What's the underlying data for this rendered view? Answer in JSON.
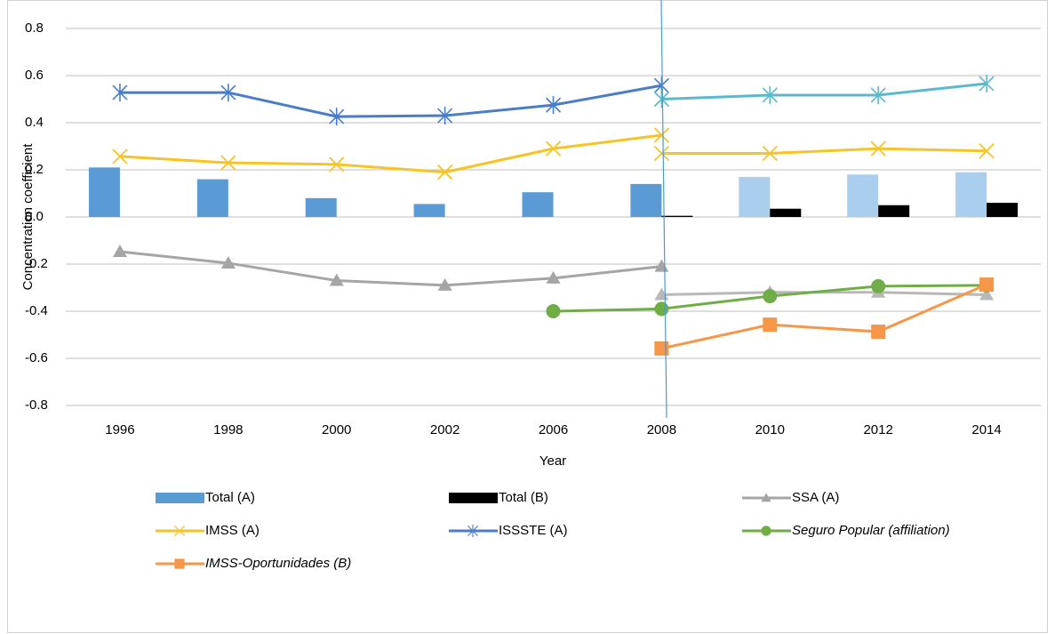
{
  "chart_data": {
    "type": "combo",
    "y_label": "Concentration coefficient",
    "x_label": "Year",
    "categories": [
      "1996",
      "1998",
      "2000",
      "2002",
      "2006",
      "2008",
      "2010",
      "2012",
      "2014"
    ],
    "ylim": [
      -0.8,
      0.8
    ],
    "yticks": [
      0.8,
      0.6,
      0.4,
      0.2,
      {
        "value": 0,
        "label": "0.0"
      },
      -0.2,
      -0.4,
      -0.6,
      -0.8
    ],
    "grid": true,
    "series": [
      {
        "name": "Total (A)",
        "type": "bar",
        "colors": [
          "#5b9bd5",
          "#5b9bd5",
          "#5b9bd5",
          "#5b9bd5",
          "#5b9bd5",
          "#5b9bd5",
          "#aacfee",
          "#aacfee",
          "#aacfee"
        ],
        "values": [
          0.21,
          0.16,
          0.08,
          0.055,
          0.105,
          0.14,
          0.17,
          0.18,
          0.19
        ]
      },
      {
        "name": "Total (B)",
        "type": "bar",
        "color": "#000000",
        "values": [
          null,
          null,
          null,
          null,
          null,
          0.005,
          0.035,
          0.05,
          0.06
        ]
      },
      {
        "name": "SSA (A)",
        "type": "line",
        "marker": "triangle",
        "segments": [
          {
            "color": "#a5a5a5",
            "values": [
              -0.147,
              -0.196,
              -0.27,
              -0.29,
              -0.26,
              -0.21,
              null,
              null,
              null
            ]
          },
          {
            "color": "#b8b8b8",
            "values": [
              null,
              null,
              null,
              null,
              null,
              -0.33,
              -0.32,
              -0.32,
              -0.33
            ]
          }
        ]
      },
      {
        "name": "IMSS (A)",
        "type": "line",
        "marker": "x",
        "segments": [
          {
            "color": "#f7c325",
            "values": [
              0.257,
              0.23,
              0.223,
              0.19,
              0.29,
              0.347,
              null,
              null,
              null
            ]
          },
          {
            "color": "#f7c325",
            "values": [
              null,
              null,
              null,
              null,
              null,
              0.27,
              0.27,
              0.29,
              0.28
            ]
          }
        ]
      },
      {
        "name": "ISSSTE (A)",
        "type": "line",
        "marker": "star",
        "segments": [
          {
            "color": "#4a7dc9",
            "values": [
              0.528,
              0.528,
              0.426,
              0.43,
              0.475,
              0.558,
              null,
              null,
              null
            ]
          },
          {
            "color": "#5bb9cc",
            "values": [
              null,
              null,
              null,
              null,
              null,
              0.5,
              0.517,
              0.517,
              0.566
            ]
          }
        ]
      },
      {
        "name": "Seguro Popular (affiliation)",
        "type": "line",
        "marker": "circle",
        "italic": true,
        "segments": [
          {
            "color": "#70ad47",
            "values": [
              null,
              null,
              null,
              null,
              -0.4,
              -0.39,
              -0.336,
              -0.294,
              -0.29
            ]
          }
        ]
      },
      {
        "name": "IMSS-Oportunidades (B)",
        "type": "line",
        "marker": "square",
        "italic": true,
        "segments": [
          {
            "color": "#f79646",
            "values": [
              null,
              null,
              null,
              null,
              null,
              -0.558,
              -0.457,
              -0.487,
              -0.287
            ]
          }
        ]
      }
    ]
  }
}
